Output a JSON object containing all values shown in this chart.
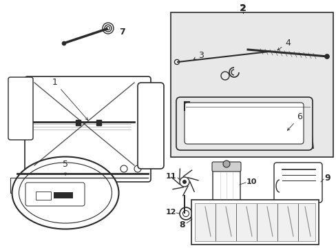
{
  "bg_color": "#ffffff",
  "lc": "#2a2a2a",
  "fc_box": "#e8e8e8",
  "figsize": [
    4.89,
    3.6
  ],
  "dpi": 100,
  "xlim": [
    0,
    489
  ],
  "ylim": [
    0,
    360
  ]
}
